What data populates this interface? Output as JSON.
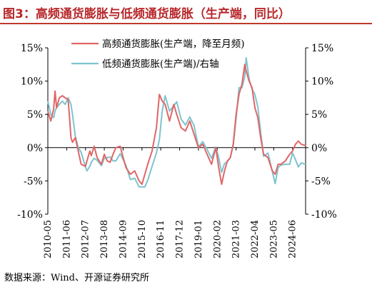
{
  "header": {
    "title": "图3：高频通货膨胀与低频通货膨胀（生产端，同比）"
  },
  "footer": {
    "source": "数据来源：Wind、开源证券研究所"
  },
  "colors": {
    "high_freq": "#e06666",
    "low_freq": "#7ec4cf",
    "title": "#b8282b"
  },
  "chart_data": {
    "type": "line",
    "legend_placement": "top",
    "grid": false,
    "y_left": {
      "min": -10,
      "max": 15,
      "ticks": [
        "-10%",
        "-5%",
        "0%",
        "5%",
        "10%",
        "15%"
      ]
    },
    "y_right": {
      "min": -10,
      "max": 15,
      "ticks": [
        "-10%",
        "-5%",
        "0%",
        "5%",
        "10%",
        "15%"
      ]
    },
    "x_range": [
      "2010-05",
      "2025-03"
    ],
    "x_ticks": [
      "2010-05",
      "2011-06",
      "2012-07",
      "2013-08",
      "2014-09",
      "2015-10",
      "2016-11",
      "2017-12",
      "2019-01",
      "2020-02",
      "2021-03",
      "2022-04",
      "2023-05",
      "2024-06"
    ],
    "series": [
      {
        "name": "高频通货膨胀(生产端，降至月频)",
        "axis": "left",
        "points": [
          [
            "2010-05",
            5.5
          ],
          [
            "2010-07",
            4.0
          ],
          [
            "2010-09",
            5.8
          ],
          [
            "2010-10",
            8.5
          ],
          [
            "2010-11",
            6.0
          ],
          [
            "2011-01",
            7.5
          ],
          [
            "2011-03",
            7.8
          ],
          [
            "2011-05",
            7.5
          ],
          [
            "2011-07",
            7.2
          ],
          [
            "2011-08",
            4.5
          ],
          [
            "2011-09",
            1.5
          ],
          [
            "2011-10",
            0.8
          ],
          [
            "2011-12",
            1.5
          ],
          [
            "2012-02",
            -0.5
          ],
          [
            "2012-04",
            -2.5
          ],
          [
            "2012-07",
            -2.8
          ],
          [
            "2012-08",
            -2.0
          ],
          [
            "2012-10",
            -0.5
          ],
          [
            "2012-11",
            -1.2
          ],
          [
            "2013-01",
            0.2
          ],
          [
            "2013-03",
            -1.5
          ],
          [
            "2013-06",
            -2.5
          ],
          [
            "2013-08",
            -1.0
          ],
          [
            "2013-10",
            -2.0
          ],
          [
            "2013-12",
            -2.2
          ],
          [
            "2014-02",
            -1.0
          ],
          [
            "2014-04",
            0.0
          ],
          [
            "2014-07",
            0.2
          ],
          [
            "2014-09",
            -1.5
          ],
          [
            "2014-11",
            -3.0
          ],
          [
            "2015-02",
            -4.0
          ],
          [
            "2015-05",
            -3.5
          ],
          [
            "2015-08",
            -5.0
          ],
          [
            "2015-10",
            -5.5
          ],
          [
            "2015-12",
            -4.0
          ],
          [
            "2016-02",
            -2.5
          ],
          [
            "2016-05",
            -0.5
          ],
          [
            "2016-08",
            3.0
          ],
          [
            "2016-10",
            8.0
          ],
          [
            "2016-12",
            7.0
          ],
          [
            "2017-02",
            6.5
          ],
          [
            "2017-05",
            4.0
          ],
          [
            "2017-08",
            6.5
          ],
          [
            "2017-10",
            5.0
          ],
          [
            "2018-01",
            3.0
          ],
          [
            "2018-04",
            2.5
          ],
          [
            "2018-07",
            4.0
          ],
          [
            "2018-10",
            2.0
          ],
          [
            "2019-01",
            0.0
          ],
          [
            "2019-04",
            0.5
          ],
          [
            "2019-07",
            -1.0
          ],
          [
            "2019-10",
            -2.5
          ],
          [
            "2020-01",
            0.0
          ],
          [
            "2020-03",
            -3.0
          ],
          [
            "2020-05",
            -5.5
          ],
          [
            "2020-07",
            -3.5
          ],
          [
            "2020-09",
            -2.0
          ],
          [
            "2020-11",
            -1.5
          ],
          [
            "2021-01",
            0.5
          ],
          [
            "2021-03",
            5.0
          ],
          [
            "2021-05",
            8.0
          ],
          [
            "2021-07",
            9.5
          ],
          [
            "2021-09",
            12.5
          ],
          [
            "2021-10",
            11.5
          ],
          [
            "2021-12",
            10.0
          ],
          [
            "2022-02",
            9.0
          ],
          [
            "2022-04",
            6.0
          ],
          [
            "2022-06",
            4.5
          ],
          [
            "2022-08",
            1.5
          ],
          [
            "2022-10",
            -1.0
          ],
          [
            "2023-01",
            -1.5
          ],
          [
            "2023-04",
            -3.5
          ],
          [
            "2023-06",
            -4.0
          ],
          [
            "2023-08",
            -2.5
          ],
          [
            "2023-10",
            -2.5
          ],
          [
            "2024-01",
            -2.0
          ],
          [
            "2024-04",
            -1.0
          ],
          [
            "2024-06",
            -0.5
          ],
          [
            "2024-08",
            0.5
          ],
          [
            "2024-10",
            1.0
          ],
          [
            "2024-12",
            0.5
          ],
          [
            "2025-03",
            0.3
          ]
        ]
      },
      {
        "name": "低频通货膨胀(生产端)/右轴",
        "axis": "right",
        "points": [
          [
            "2010-05",
            7.0
          ],
          [
            "2010-07",
            5.0
          ],
          [
            "2010-09",
            4.5
          ],
          [
            "2010-10",
            5.5
          ],
          [
            "2010-11",
            6.0
          ],
          [
            "2011-01",
            6.5
          ],
          [
            "2011-03",
            7.0
          ],
          [
            "2011-05",
            6.5
          ],
          [
            "2011-07",
            7.5
          ],
          [
            "2011-08",
            7.0
          ],
          [
            "2011-09",
            6.5
          ],
          [
            "2011-10",
            5.0
          ],
          [
            "2011-12",
            1.7
          ],
          [
            "2012-02",
            0.0
          ],
          [
            "2012-04",
            -0.7
          ],
          [
            "2012-07",
            -2.9
          ],
          [
            "2012-08",
            -3.5
          ],
          [
            "2012-10",
            -2.8
          ],
          [
            "2012-11",
            -2.2
          ],
          [
            "2013-01",
            -1.6
          ],
          [
            "2013-03",
            -1.9
          ],
          [
            "2013-06",
            -2.7
          ],
          [
            "2013-08",
            -1.6
          ],
          [
            "2013-10",
            -1.5
          ],
          [
            "2013-12",
            -1.4
          ],
          [
            "2014-02",
            -2.0
          ],
          [
            "2014-04",
            -2.0
          ],
          [
            "2014-07",
            -0.9
          ],
          [
            "2014-09",
            -1.8
          ],
          [
            "2014-11",
            -2.7
          ],
          [
            "2015-02",
            -4.8
          ],
          [
            "2015-05",
            -4.6
          ],
          [
            "2015-08",
            -5.9
          ],
          [
            "2015-10",
            -5.9
          ],
          [
            "2015-12",
            -5.9
          ],
          [
            "2016-02",
            -4.9
          ],
          [
            "2016-05",
            -2.8
          ],
          [
            "2016-08",
            -0.8
          ],
          [
            "2016-10",
            1.2
          ],
          [
            "2016-12",
            5.5
          ],
          [
            "2017-02",
            7.8
          ],
          [
            "2017-05",
            5.5
          ],
          [
            "2017-08",
            6.3
          ],
          [
            "2017-10",
            6.9
          ],
          [
            "2018-01",
            4.3
          ],
          [
            "2018-04",
            3.4
          ],
          [
            "2018-07",
            4.6
          ],
          [
            "2018-10",
            3.3
          ],
          [
            "2019-01",
            0.1
          ],
          [
            "2019-04",
            0.9
          ],
          [
            "2019-07",
            -0.3
          ],
          [
            "2019-10",
            -1.6
          ],
          [
            "2020-01",
            0.1
          ],
          [
            "2020-03",
            -1.5
          ],
          [
            "2020-05",
            -3.7
          ],
          [
            "2020-07",
            -2.4
          ],
          [
            "2020-09",
            -2.1
          ],
          [
            "2020-11",
            -1.5
          ],
          [
            "2021-01",
            0.3
          ],
          [
            "2021-03",
            4.4
          ],
          [
            "2021-05",
            9.0
          ],
          [
            "2021-07",
            9.0
          ],
          [
            "2021-09",
            10.7
          ],
          [
            "2021-10",
            13.5
          ],
          [
            "2021-12",
            10.3
          ],
          [
            "2022-02",
            8.8
          ],
          [
            "2022-04",
            8.0
          ],
          [
            "2022-06",
            6.1
          ],
          [
            "2022-08",
            2.3
          ],
          [
            "2022-10",
            -1.3
          ],
          [
            "2023-01",
            -0.8
          ],
          [
            "2023-04",
            -3.6
          ],
          [
            "2023-06",
            -5.4
          ],
          [
            "2023-08",
            -3.0
          ],
          [
            "2023-10",
            -2.6
          ],
          [
            "2024-01",
            -2.5
          ],
          [
            "2024-04",
            -2.5
          ],
          [
            "2024-06",
            -0.8
          ],
          [
            "2024-08",
            -1.8
          ],
          [
            "2024-10",
            -2.9
          ],
          [
            "2024-12",
            -2.3
          ],
          [
            "2025-03",
            -2.5
          ]
        ]
      }
    ]
  }
}
